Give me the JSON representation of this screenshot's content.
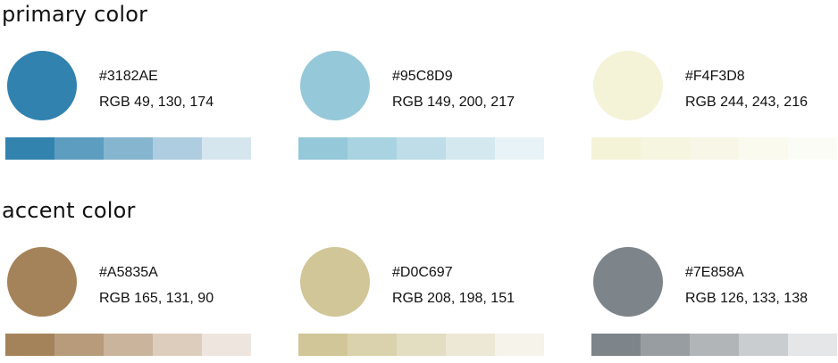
{
  "sections": [
    {
      "title": "primary color",
      "colors": [
        {
          "hex_label": "#3182AE",
          "rgb_label": "RGB 49, 130, 174",
          "swatch": "#3182AE",
          "tints": [
            "#3284AF",
            "#5D9DC0",
            "#86B5CF",
            "#AFCDE0",
            "#D6E6EF"
          ]
        },
        {
          "hex_label": "#95C8D9",
          "rgb_label": "RGB 149, 200, 217",
          "swatch": "#95C8D9",
          "tints": [
            "#95C8D9",
            "#A9D3E1",
            "#BEDDE8",
            "#D3E8EF",
            "#E8F3F7"
          ]
        },
        {
          "hex_label": "#F4F3D8",
          "rgb_label": "RGB 244, 243, 216",
          "swatch": "#F4F3D8",
          "tints": [
            "#F4F3D8",
            "#F6F5E0",
            "#F8F7E7",
            "#FAFAEF",
            "#FCFCF7"
          ]
        }
      ]
    },
    {
      "title": "accent color",
      "colors": [
        {
          "hex_label": "#A5835A",
          "rgb_label": "RGB 165, 131, 90",
          "swatch": "#A5835A",
          "tints": [
            "#A5835A",
            "#B89B7B",
            "#CBB49C",
            "#DDCDBD",
            "#EEE6DE"
          ]
        },
        {
          "hex_label": "#D0C697",
          "rgb_label": "RGB 208, 198, 151",
          "swatch": "#D0C697",
          "tints": [
            "#D0C697",
            "#DAD2AD",
            "#E3DDC1",
            "#ECE8D5",
            "#F5F3EA"
          ]
        },
        {
          "hex_label": "#7E858A",
          "rgb_label": "RGB 126, 133, 138",
          "swatch": "#7E858A",
          "tints": [
            "#7E858A",
            "#989DA1",
            "#B1B5B8",
            "#CACDCF",
            "#E4E6E7"
          ]
        }
      ]
    }
  ]
}
